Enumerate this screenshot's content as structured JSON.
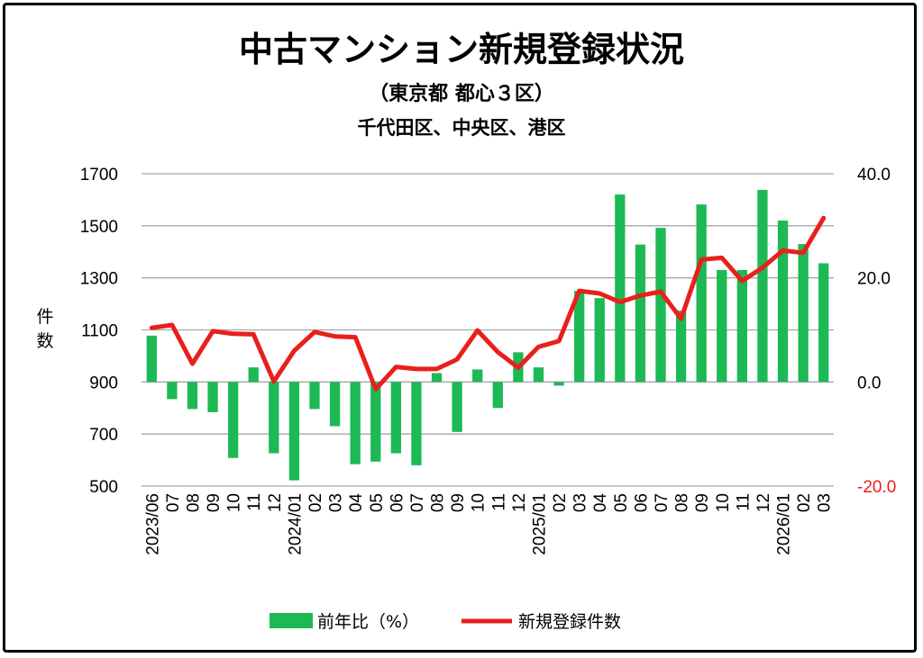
{
  "chart_data": {
    "type": "bar+line",
    "title": "中古マンション新規登録状況",
    "subtitle1": "（東京都 都心３区）",
    "subtitle2": "千代田区、中央区、港区",
    "ylabel_left": "件数",
    "ylim_left": [
      500,
      1700
    ],
    "yticks_left": [
      "1700",
      "1500",
      "1300",
      "1100",
      "900",
      "700",
      "500"
    ],
    "ylim_right": [
      -20,
      40
    ],
    "yticks_right": [
      "40.0",
      "20.0",
      "0.0",
      "-20.0"
    ],
    "right_negative_color": "#e8201c",
    "x_labels": [
      "2023/06",
      "07",
      "08",
      "09",
      "10",
      "11",
      "12",
      "2024/01",
      "02",
      "03",
      "04",
      "05",
      "06",
      "07",
      "08",
      "09",
      "10",
      "11",
      "12",
      "2025/01",
      "02",
      "03",
      "04",
      "05",
      "06",
      "07",
      "08",
      "09",
      "10",
      "11",
      "12",
      "2026/01",
      "02",
      "03"
    ],
    "series": [
      {
        "name": "前年比（%）",
        "type": "bar",
        "axis": "right",
        "color": "#1db954",
        "values": [
          8.9,
          -3.3,
          -5.2,
          -5.8,
          -14.6,
          2.8,
          -13.7,
          -18.9,
          -5.2,
          -8.5,
          -15.8,
          -15.3,
          -13.7,
          -16.0,
          1.7,
          -9.6,
          2.4,
          -5.0,
          5.7,
          2.8,
          -0.7,
          17.5,
          16.1,
          36.0,
          26.4,
          29.6,
          13.7,
          34.1,
          21.5,
          21.5,
          36.9,
          31.0,
          26.5,
          22.8
        ],
        "shown_on_axis": "right (-20.0 to 40.0), bars drawn from 0.0"
      },
      {
        "name": "新規登録件数",
        "type": "line",
        "axis": "left",
        "color": "#e8201c",
        "values": [
          1108,
          1119,
          970,
          1095,
          1085,
          1083,
          902,
          1020,
          1092,
          1075,
          1072,
          872,
          958,
          950,
          950,
          987,
          1098,
          1015,
          955,
          1035,
          1057,
          1250,
          1240,
          1207,
          1232,
          1247,
          1143,
          1370,
          1377,
          1288,
          1339,
          1405,
          1396,
          1530
        ]
      }
    ],
    "legend": [
      "前年比（%）",
      "新規登録件数"
    ],
    "legend_position": "bottom",
    "grid": true
  }
}
